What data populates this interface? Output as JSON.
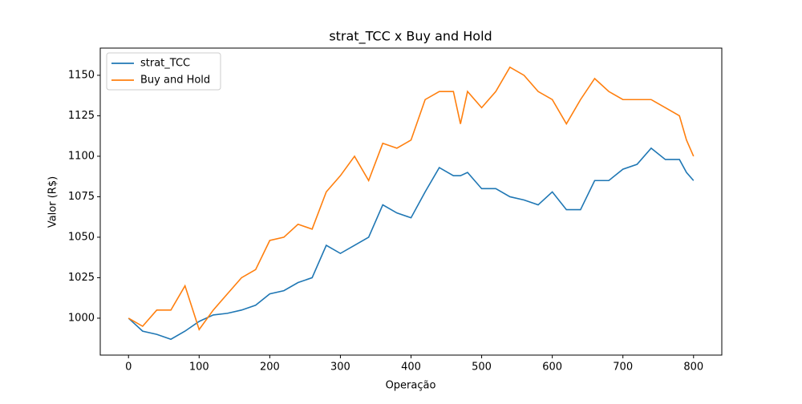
{
  "chart_data": {
    "type": "line",
    "title": "strat_TCC x Buy and Hold",
    "x_label": "Operação",
    "y_label": "Valor (R$)",
    "x": [
      0,
      20,
      40,
      60,
      80,
      100,
      120,
      140,
      160,
      180,
      200,
      220,
      240,
      260,
      280,
      300,
      320,
      340,
      360,
      380,
      400,
      420,
      440,
      460,
      470,
      480,
      500,
      520,
      540,
      560,
      580,
      600,
      620,
      640,
      660,
      680,
      700,
      720,
      740,
      760,
      780,
      790,
      800
    ],
    "series": [
      {
        "name": "strat_TCC",
        "color": "#1f77b4",
        "values": [
          1000,
          992,
          990,
          987,
          992,
          998,
          1002,
          1003,
          1005,
          1008,
          1015,
          1017,
          1022,
          1025,
          1045,
          1040,
          1045,
          1050,
          1070,
          1065,
          1062,
          1078,
          1093,
          1088,
          1088,
          1090,
          1080,
          1080,
          1075,
          1073,
          1070,
          1078,
          1067,
          1067,
          1085,
          1085,
          1092,
          1095,
          1105,
          1098,
          1098,
          1090,
          1085
        ]
      },
      {
        "name": "Buy and Hold",
        "color": "#ff7f0e",
        "values": [
          1000,
          995,
          1005,
          1005,
          1020,
          993,
          1005,
          1015,
          1025,
          1030,
          1048,
          1050,
          1058,
          1055,
          1078,
          1088,
          1100,
          1085,
          1108,
          1105,
          1110,
          1135,
          1140,
          1140,
          1120,
          1140,
          1130,
          1140,
          1155,
          1150,
          1140,
          1135,
          1120,
          1135,
          1148,
          1140,
          1135,
          1135,
          1135,
          1130,
          1125,
          1110,
          1100
        ]
      }
    ],
    "xlim": [
      -40,
      840
    ],
    "ylim": [
      977.2,
      1166.8
    ],
    "xticks": [
      0,
      100,
      200,
      300,
      400,
      500,
      600,
      700,
      800
    ],
    "yticks": [
      1000,
      1025,
      1050,
      1075,
      1100,
      1125,
      1150
    ],
    "legend": "upper left"
  }
}
